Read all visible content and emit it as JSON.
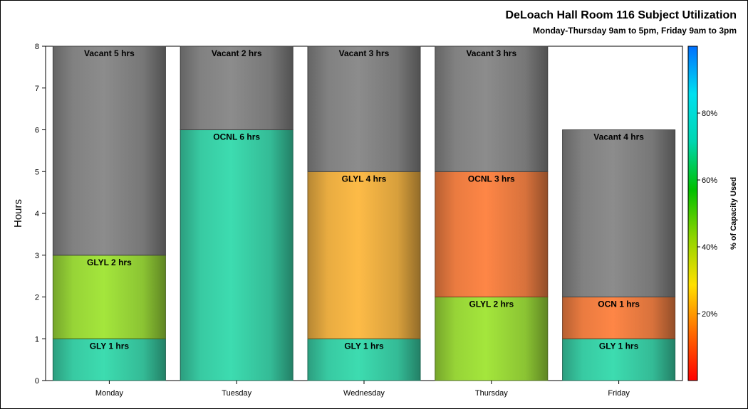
{
  "chart_data": {
    "type": "bar",
    "stacked": true,
    "title": "DeLoach Hall Room 116 Subject Utilization",
    "subtitle": "Monday-Thursday 9am to 5pm, Friday 9am to 3pm",
    "ylabel": "Hours",
    "xlabel": "",
    "ylim": [
      0,
      8
    ],
    "yticks": [
      "0",
      "1",
      "2",
      "3",
      "4",
      "5",
      "6",
      "7",
      "8"
    ],
    "categories": [
      "Monday",
      "Tuesday",
      "Wednesday",
      "Thursday",
      "Friday"
    ],
    "stacks": [
      {
        "category": "Monday",
        "segments": [
          {
            "label": "GLY 1 hrs",
            "value": 1,
            "color": "#3ddcb0"
          },
          {
            "label": "GLYL 2 hrs",
            "value": 2,
            "color": "#a4e63c"
          },
          {
            "label": "Vacant 5 hrs",
            "value": 5,
            "color": "#8c8c8c"
          }
        ]
      },
      {
        "category": "Tuesday",
        "segments": [
          {
            "label": "OCNL 6 hrs",
            "value": 6,
            "color": "#3ddcb0"
          },
          {
            "label": "Vacant 2 hrs",
            "value": 2,
            "color": "#8c8c8c"
          }
        ]
      },
      {
        "category": "Wednesday",
        "segments": [
          {
            "label": "GLY 1 hrs",
            "value": 1,
            "color": "#3ddcb0"
          },
          {
            "label": "GLYL 4 hrs",
            "value": 4,
            "color": "#fdbb47"
          },
          {
            "label": "Vacant 3 hrs",
            "value": 3,
            "color": "#8c8c8c"
          }
        ]
      },
      {
        "category": "Thursday",
        "segments": [
          {
            "label": "GLYL 2 hrs",
            "value": 2,
            "color": "#a4e63c"
          },
          {
            "label": "OCNL 3 hrs",
            "value": 3,
            "color": "#fe8646"
          },
          {
            "label": "Vacant 3 hrs",
            "value": 3,
            "color": "#8c8c8c"
          }
        ]
      },
      {
        "category": "Friday",
        "segments": [
          {
            "label": "GLY 1 hrs",
            "value": 1,
            "color": "#3ddcb0"
          },
          {
            "label": "OCN 1 hrs",
            "value": 1,
            "color": "#fe8646"
          },
          {
            "label": "Vacant 4 hrs",
            "value": 4,
            "color": "#8c8c8c"
          }
        ]
      }
    ],
    "colorbar": {
      "title": "% of Capacity Used",
      "ticks": [
        {
          "label": "20%",
          "value": 20
        },
        {
          "label": "40%",
          "value": 40
        },
        {
          "label": "60%",
          "value": 60
        },
        {
          "label": "80%",
          "value": 80
        }
      ],
      "range": [
        0,
        100
      ],
      "colors": [
        "#ff0000",
        "#ff6a00",
        "#ffe000",
        "#8fd400",
        "#00c000",
        "#00d6b0",
        "#00e0f0",
        "#0070ff"
      ]
    }
  }
}
